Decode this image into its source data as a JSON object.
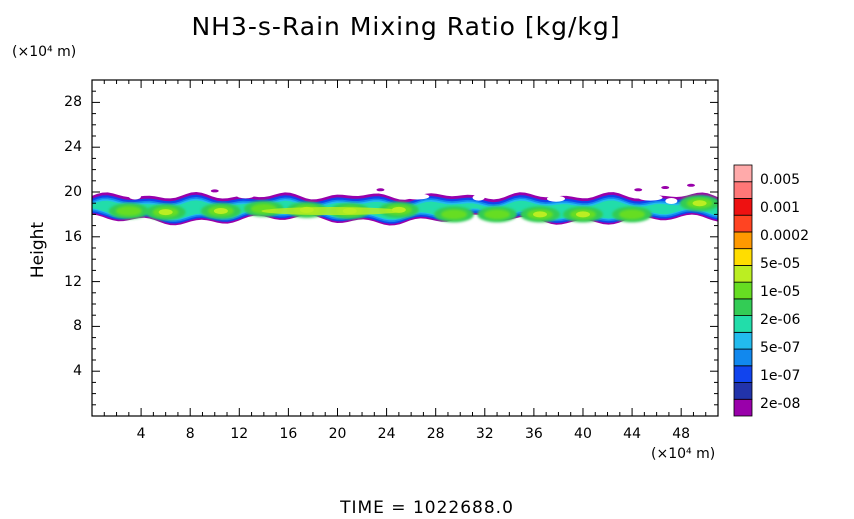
{
  "chart_data": {
    "type": "heatmap",
    "title": "NH3-s-Rain Mixing Ratio [kg/kg]",
    "ylabel": "Height",
    "x_unit": "(×10⁴ m)",
    "y_unit": "(×10⁴ m)",
    "xlim": [
      0,
      51
    ],
    "ylim": [
      0,
      30
    ],
    "x_ticks": [
      "4",
      "8",
      "12",
      "16",
      "20",
      "24",
      "28",
      "32",
      "36",
      "40",
      "44",
      "48"
    ],
    "y_ticks": [
      "4",
      "8",
      "12",
      "16",
      "20",
      "24",
      "28"
    ],
    "legend_levels": [
      "0.005",
      "0.001",
      "0.0002",
      "5e-05",
      "1e-05",
      "2e-06",
      "5e-07",
      "1e-07",
      "2e-08"
    ],
    "colors": [
      "#9900aa",
      "#2233aa",
      "#1144ee",
      "#1188ee",
      "#22bbee",
      "#22ddaa",
      "#33cc55",
      "#66dd22",
      "#bbee22",
      "#ffdd00",
      "#ff9900",
      "#ff4422",
      "#ee1111",
      "#ff7777",
      "#ffaaaa"
    ],
    "band": {
      "y_bottom_range": [
        17.0,
        18.0
      ],
      "y_top_range": [
        19.3,
        20.0
      ],
      "core_height": 18.3,
      "cells": [
        {
          "x": 3.0,
          "y": 18.3,
          "level": "1e-05"
        },
        {
          "x": 6.0,
          "y": 18.2,
          "level": "5e-05"
        },
        {
          "x": 10.5,
          "y": 18.3,
          "level": "5e-05"
        },
        {
          "x": 14.0,
          "y": 18.5,
          "level": "1e-05"
        },
        {
          "x": 17.5,
          "y": 18.4,
          "level": "5e-05"
        },
        {
          "x": 21.0,
          "y": 18.3,
          "level": "5e-05"
        },
        {
          "x": 25.0,
          "y": 18.4,
          "level": "5e-05"
        },
        {
          "x": 29.5,
          "y": 18.0,
          "level": "1e-05"
        },
        {
          "x": 33.0,
          "y": 18.0,
          "level": "1e-05"
        },
        {
          "x": 36.5,
          "y": 18.0,
          "level": "5e-05"
        },
        {
          "x": 40.0,
          "y": 18.0,
          "level": "5e-05"
        },
        {
          "x": 44.0,
          "y": 18.0,
          "level": "1e-05"
        },
        {
          "x": 49.5,
          "y": 19.0,
          "level": "5e-05"
        }
      ]
    }
  },
  "time_label": "TIME  =  1022688.0"
}
